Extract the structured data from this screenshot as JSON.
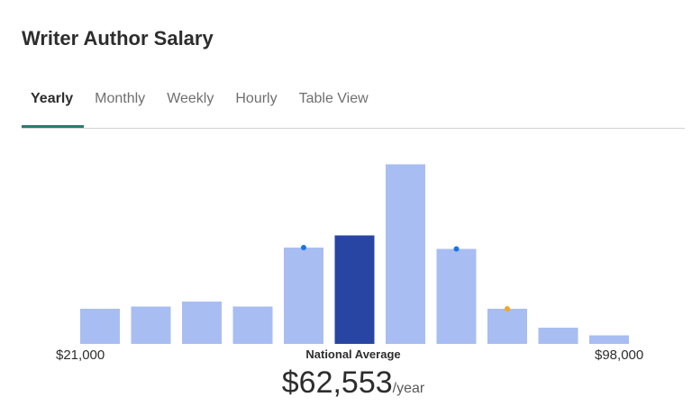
{
  "page": {
    "title": "Writer Author Salary"
  },
  "tabs": [
    {
      "label": "Yearly",
      "active": true
    },
    {
      "label": "Monthly",
      "active": false
    },
    {
      "label": "Weekly",
      "active": false
    },
    {
      "label": "Hourly",
      "active": false
    },
    {
      "label": "Table View",
      "active": false
    }
  ],
  "chart_data": {
    "type": "bar",
    "title": "",
    "xlabel": "",
    "ylabel": "",
    "min_label": "$21,000",
    "max_label": "$98,000",
    "average_label": "National Average",
    "average_value": "$62,553",
    "average_unit": "/year",
    "values": [
      7.8,
      8.3,
      9.4,
      8.3,
      21.4,
      24.1,
      39.9,
      21.1,
      7.8,
      3.6,
      1.9
    ],
    "ylim": [
      0,
      40
    ],
    "highlight_index": 5,
    "marker_dots": [
      {
        "index": 4,
        "color": "#1a73e8"
      },
      {
        "index": 7,
        "color": "#1a73e8"
      },
      {
        "index": 8,
        "color": "#f5a623"
      }
    ],
    "colors": {
      "bar": "#a8bdf2",
      "highlight": "#2945a3"
    }
  }
}
